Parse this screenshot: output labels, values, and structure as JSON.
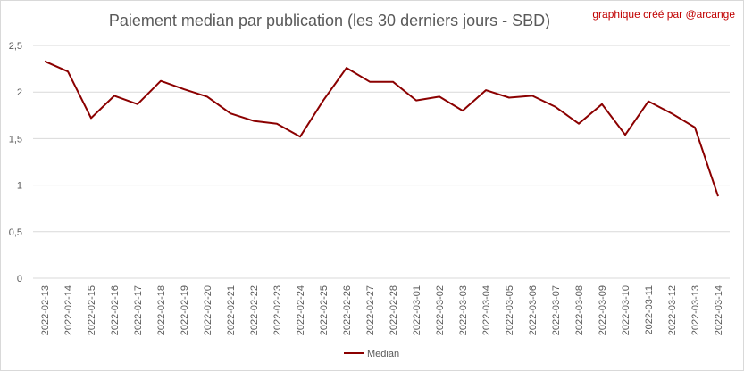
{
  "chart_data": {
    "type": "line",
    "title": "Paiement median par publication (les 30 derniers jours - SBD)",
    "annotation": "graphique créé par @arcange",
    "xlabel": "",
    "ylabel": "",
    "ylim": [
      0,
      2.5
    ],
    "yticks": [
      "0",
      "0,5",
      "1",
      "1,5",
      "2",
      "2,5"
    ],
    "grid": true,
    "legend_position": "bottom",
    "categories": [
      "2022-02-13",
      "2022-02-14",
      "2022-02-15",
      "2022-02-16",
      "2022-02-17",
      "2022-02-18",
      "2022-02-19",
      "2022-02-20",
      "2022-02-21",
      "2022-02-22",
      "2022-02-23",
      "2022-02-24",
      "2022-02-25",
      "2022-02-26",
      "2022-02-27",
      "2022-02-28",
      "2022-03-01",
      "2022-03-02",
      "2022-03-03",
      "2022-03-04",
      "2022-03-05",
      "2022-03-06",
      "2022-03-07",
      "2022-03-08",
      "2022-03-09",
      "2022-03-10",
      "2022-03-11",
      "2022-03-12",
      "2022-03-13",
      "2022-03-14"
    ],
    "series": [
      {
        "name": "Median",
        "color": "#8b0000",
        "values": [
          2.33,
          2.22,
          1.72,
          1.96,
          1.87,
          2.12,
          2.03,
          1.95,
          1.77,
          1.69,
          1.66,
          1.52,
          1.91,
          2.26,
          2.11,
          2.11,
          1.91,
          1.95,
          1.8,
          2.02,
          1.94,
          1.96,
          1.84,
          1.66,
          1.87,
          1.54,
          1.9,
          1.77,
          1.62,
          0.88
        ]
      }
    ]
  }
}
